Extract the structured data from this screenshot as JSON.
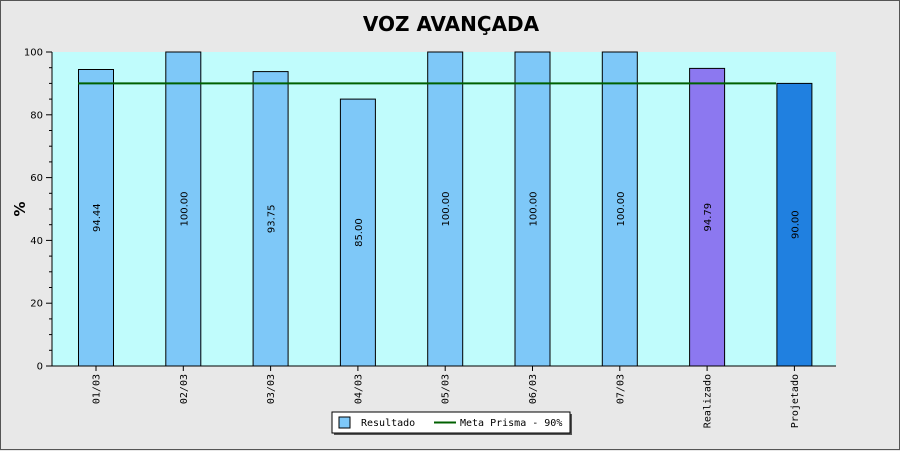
{
  "chart_data": {
    "type": "bar",
    "title": "VOZ AVANÇADA",
    "ylabel": "%",
    "xlabel": "",
    "ylim": [
      0,
      100
    ],
    "yticks": [
      0,
      20,
      40,
      60,
      80,
      100
    ],
    "categories": [
      "01/03",
      "02/03",
      "03/03",
      "04/03",
      "05/03",
      "06/03",
      "07/03",
      "Realizado",
      "Projetado"
    ],
    "series": [
      {
        "name": "Resultado",
        "values": [
          94.44,
          100.0,
          93.75,
          85.0,
          100.0,
          100.0,
          100.0,
          94.79,
          90.0
        ],
        "labels": [
          "94.44",
          "100.00",
          "93.75",
          "85.00",
          "100.00",
          "100.00",
          "100.00",
          "94.79",
          "90.00"
        ],
        "colors": [
          "#7ec8f8",
          "#7ec8f8",
          "#7ec8f8",
          "#7ec8f8",
          "#7ec8f8",
          "#7ec8f8",
          "#7ec8f8",
          "#8c78f0",
          "#2080e0"
        ]
      },
      {
        "name": "Meta Prisma - 90%",
        "type": "line",
        "value": 90,
        "color": "#006000"
      }
    ],
    "legend_position": "bottom-center",
    "plot_background": "#c0fcfc",
    "grid": false
  }
}
